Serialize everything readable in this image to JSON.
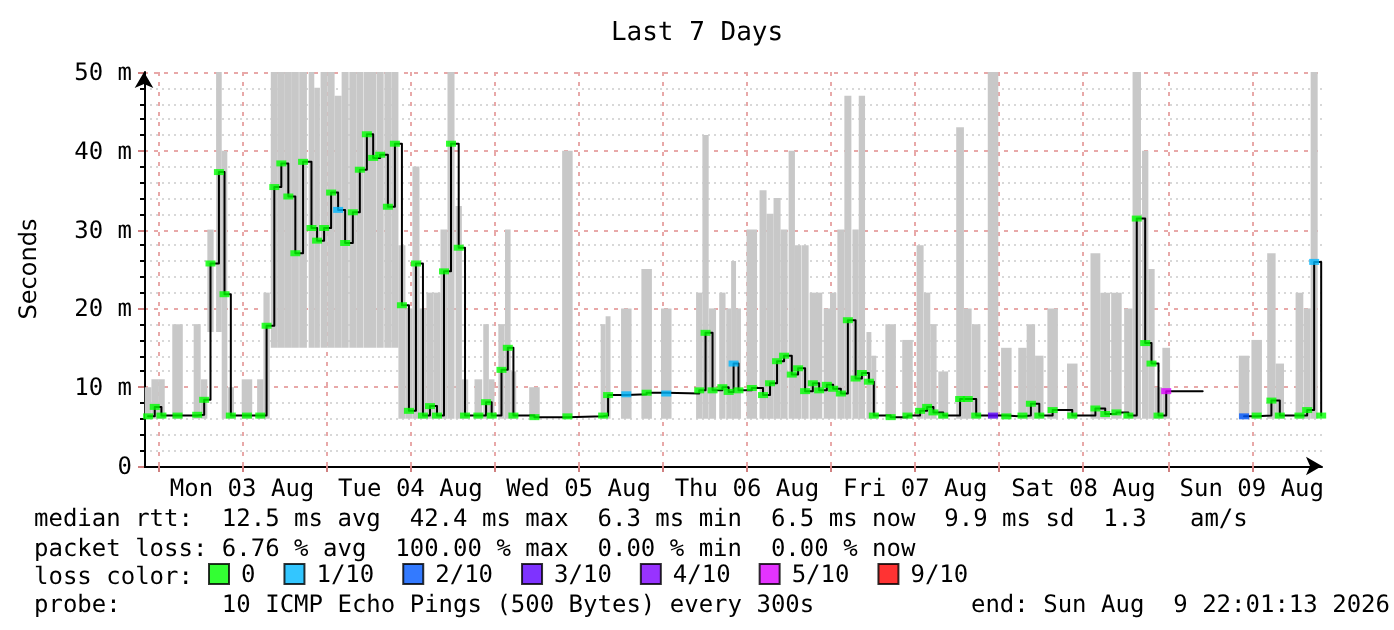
{
  "chart_data": {
    "type": "scatter",
    "title": "Last 7 Days",
    "ylabel": "Seconds",
    "legend_title": "loss color:",
    "legend": "bottom",
    "grid": true,
    "marker": "square",
    "xlim": [
      "2026-08-02T22:01",
      "2026-08-09T22:01"
    ],
    "xticks": [
      {
        "value": "2026-08-03T00:00",
        "label": null
      },
      {
        "value": "2026-08-03T12:00",
        "label": "Mon 03 Aug"
      },
      {
        "value": "2026-08-04T00:00",
        "label": null
      },
      {
        "value": "2026-08-04T12:00",
        "label": "Tue 04 Aug"
      },
      {
        "value": "2026-08-05T00:00",
        "label": null
      },
      {
        "value": "2026-08-05T12:00",
        "label": "Wed 05 Aug"
      },
      {
        "value": "2026-08-06T00:00",
        "label": null
      },
      {
        "value": "2026-08-06T12:00",
        "label": "Thu 06 Aug"
      },
      {
        "value": "2026-08-07T00:00",
        "label": null
      },
      {
        "value": "2026-08-07T12:00",
        "label": "Fri 07 Aug"
      },
      {
        "value": "2026-08-08T00:00",
        "label": null
      },
      {
        "value": "2026-08-08T12:00",
        "label": "Sat 08 Aug"
      },
      {
        "value": "2026-08-09T00:00",
        "label": null
      },
      {
        "value": "2026-08-09T12:00",
        "label": "Sun 09 Aug"
      }
    ],
    "ylim": [
      0,
      50
    ],
    "yticks": [
      {
        "value": 0,
        "label": "0"
      },
      {
        "value": 10,
        "label": "10 m"
      },
      {
        "value": 20,
        "label": "20 m"
      },
      {
        "value": 30,
        "label": "30 m"
      },
      {
        "value": 40,
        "label": "40 m"
      },
      {
        "value": 50,
        "label": "50 m"
      }
    ],
    "annotations": [
      "median rtt:  12.5 ms avg  42.4 ms max  6.3 ms min  6.5 ms now  9.9 ms sd  1.3   am/s",
      "packet loss: 6.76 % avg  100.00 % max  0.00 % min  0.00 % now",
      "probe:       10 ICMP Echo Pings (500 Bytes) every 300s",
      "end: Sun Aug  9 22:01:13 2026"
    ],
    "series": [
      {
        "type": "step",
        "color": "#000000",
        "marker": "none",
        "line_style": "solid",
        "x": [
          "2026-08-02T22:36",
          "2026-08-02T23:33",
          "2026-08-03T00:30",
          "2026-08-03T02:48",
          "2026-08-03T05:36",
          "2026-08-03T06:36",
          "2026-08-03T07:30",
          "2026-08-03T08:42",
          "2026-08-03T09:30",
          "2026-08-03T10:24",
          "2026-08-03T12:42",
          "2026-08-03T14:36",
          "2026-08-03T15:30",
          "2026-08-03T16:36",
          "2026-08-03T17:36",
          "2026-08-03T18:36",
          "2026-08-03T19:36",
          "2026-08-03T20:42",
          "2026-08-03T21:54",
          "2026-08-03T22:42",
          "2026-08-03T23:42",
          "2026-08-04T00:42",
          "2026-08-04T01:42",
          "2026-08-04T02:42",
          "2026-08-04T03:48",
          "2026-08-04T04:48",
          "2026-08-04T05:48",
          "2026-08-04T06:42",
          "2026-08-04T07:42",
          "2026-08-04T08:48",
          "2026-08-04T09:48",
          "2026-08-04T10:48",
          "2026-08-04T11:48",
          "2026-08-04T12:48",
          "2026-08-04T13:48",
          "2026-08-04T14:48",
          "2026-08-04T15:48",
          "2026-08-04T16:48",
          "2026-08-04T17:48",
          "2026-08-04T18:54",
          "2026-08-04T19:48",
          "2026-08-04T21:42",
          "2026-08-04T22:48",
          "2026-08-04T23:36",
          "2026-08-05T01:00",
          "2026-08-05T01:54",
          "2026-08-05T02:42",
          "2026-08-05T05:42",
          "2026-08-05T10:24",
          "2026-08-05T15:30",
          "2026-08-05T16:12",
          "2026-08-05T18:48",
          "2026-08-05T21:42",
          "2026-08-06T00:30",
          "2026-08-06T05:12",
          "2026-08-06T06:06",
          "2026-08-06T07:06",
          "2026-08-06T08:30",
          "2026-08-06T09:24",
          "2026-08-06T10:06",
          "2026-08-06T10:48",
          "2026-08-06T12:42",
          "2026-08-06T14:18",
          "2026-08-06T15:18",
          "2026-08-06T16:18",
          "2026-08-06T17:18",
          "2026-08-06T18:24",
          "2026-08-06T19:18",
          "2026-08-06T20:18",
          "2026-08-06T21:24",
          "2026-08-06T22:18",
          "2026-08-06T23:24",
          "2026-08-07T00:18",
          "2026-08-07T01:24",
          "2026-08-07T02:24",
          "2026-08-07T03:30",
          "2026-08-07T04:24",
          "2026-08-07T05:24",
          "2026-08-07T06:06",
          "2026-08-07T08:30",
          "2026-08-07T10:54",
          "2026-08-07T12:42",
          "2026-08-07T13:42",
          "2026-08-07T14:36",
          "2026-08-07T16:00",
          "2026-08-07T18:24",
          "2026-08-07T19:30",
          "2026-08-07T20:42",
          "2026-08-07T23:06",
          "2026-08-08T01:00",
          "2026-08-08T03:18",
          "2026-08-08T04:30",
          "2026-08-08T05:42",
          "2026-08-08T07:36",
          "2026-08-08T10:24",
          "2026-08-08T13:42",
          "2026-08-08T15:06",
          "2026-08-08T16:42",
          "2026-08-08T18:24",
          "2026-08-08T19:36",
          "2026-08-08T20:48",
          "2026-08-08T21:42",
          "2026-08-08T22:42",
          "2026-08-08T23:48",
          "2026-08-09T05:00",
          "2026-08-09T10:54",
          "2026-08-09T12:42",
          "2026-08-09T14:48",
          "2026-08-09T16:00",
          "2026-08-09T18:48",
          "2026-08-09T19:54",
          "2026-08-09T20:54",
          "2026-08-09T21:54"
        ],
        "values": [
          6.3,
          7.5,
          6.4,
          6.4,
          6.5,
          8.4,
          25.7,
          37.3,
          21.8,
          6.4,
          6.4,
          6.4,
          17.8,
          35.4,
          38.4,
          34.2,
          27,
          38.6,
          30.2,
          28.6,
          30.2,
          34.7,
          32.5,
          28.3,
          32.2,
          37.6,
          42.1,
          39.1,
          39.5,
          32.9,
          40.9,
          20.4,
          7,
          25.7,
          6.4,
          7.6,
          6.4,
          24.7,
          40.9,
          27.7,
          6.4,
          6.4,
          8.1,
          6.4,
          12.2,
          15,
          6.4,
          6.2,
          6.3,
          6.4,
          9,
          9.1,
          9.3,
          9.2,
          9.6,
          16.9,
          9.6,
          10,
          9.4,
          13,
          9.6,
          9.9,
          9,
          10.5,
          13.3,
          14,
          11.6,
          12.4,
          9.5,
          10.5,
          9.6,
          10.3,
          9.8,
          9.2,
          18.5,
          11.1,
          11.8,
          10.7,
          6.4,
          6.2,
          6.4,
          7,
          7.5,
          6.8,
          6.4,
          8.5,
          8.5,
          6.4,
          6.4,
          6.3,
          6.4,
          7.9,
          6.4,
          7.1,
          6.4,
          7.3,
          6.6,
          6.8,
          6.4,
          31.4,
          15.6,
          13,
          6.4,
          9.5,
          null,
          6.3,
          6.4,
          8.3,
          6.4,
          6.4,
          7.1,
          25.9,
          6.4
        ],
        "lower": [
          6,
          6,
          6,
          6,
          6,
          6,
          17,
          17,
          6,
          6,
          6,
          6,
          6,
          15,
          15,
          15,
          15,
          15,
          15,
          15,
          15,
          15,
          15,
          15,
          15,
          15,
          15,
          15,
          15,
          15,
          15,
          6,
          6,
          6,
          6,
          6,
          6,
          6,
          6,
          6,
          6,
          6,
          6,
          6,
          6,
          6,
          6,
          6,
          6,
          6,
          6,
          6,
          6,
          6,
          6,
          6,
          6,
          6,
          6,
          6,
          6,
          6,
          6,
          6,
          6,
          6,
          6,
          6,
          6,
          6,
          6,
          6,
          6,
          6,
          6,
          6,
          6,
          6,
          6,
          6,
          6,
          6,
          6,
          6,
          6,
          6,
          6,
          6,
          6,
          6,
          6,
          6,
          6,
          6,
          6,
          6,
          6,
          6,
          6,
          6,
          6,
          6,
          6,
          6,
          null,
          6,
          6,
          6,
          6,
          6,
          6,
          6,
          null
        ],
        "upper": [
          10,
          11,
          11,
          18,
          18,
          11,
          30,
          50,
          40,
          10,
          11,
          11,
          22,
          50,
          50,
          50,
          50,
          50,
          50,
          48,
          50,
          50,
          47,
          50,
          50,
          50,
          50,
          50,
          50,
          50,
          50,
          28,
          20,
          38,
          20,
          22,
          22,
          30,
          50,
          33,
          11,
          11,
          18,
          11,
          18,
          30,
          12,
          10,
          40,
          18,
          19,
          20,
          25,
          20,
          22,
          42,
          20,
          22,
          20,
          26,
          20,
          30,
          35,
          32,
          34,
          30,
          40,
          28,
          28,
          22,
          22,
          20,
          22,
          30,
          47,
          30,
          47,
          17,
          14,
          18,
          16,
          28,
          22,
          18,
          12,
          43,
          20,
          18,
          50,
          15,
          15,
          18,
          14,
          20,
          13,
          27,
          22,
          22,
          20,
          50,
          40,
          25,
          10,
          15,
          null,
          14,
          16,
          27,
          13,
          22,
          20,
          50,
          null
        ]
      },
      {
        "name": "0",
        "color": "#00ff00",
        "x": [
          "2026-08-02T22:36",
          "2026-08-02T23:33",
          "2026-08-03T00:30",
          "2026-08-03T02:48",
          "2026-08-03T05:36",
          "2026-08-03T06:36",
          "2026-08-03T07:30",
          "2026-08-03T08:42",
          "2026-08-03T09:30",
          "2026-08-03T10:24",
          "2026-08-03T12:42",
          "2026-08-03T14:36",
          "2026-08-03T15:30",
          "2026-08-03T16:36",
          "2026-08-03T17:36",
          "2026-08-03T18:36",
          "2026-08-03T19:36",
          "2026-08-03T20:42",
          "2026-08-03T21:54",
          "2026-08-03T22:42",
          "2026-08-03T23:42",
          "2026-08-04T00:42",
          "2026-08-04T02:42",
          "2026-08-04T03:48",
          "2026-08-04T04:48",
          "2026-08-04T05:48",
          "2026-08-04T06:42",
          "2026-08-04T07:42",
          "2026-08-04T08:48",
          "2026-08-04T09:48",
          "2026-08-04T10:48",
          "2026-08-04T11:48",
          "2026-08-04T12:48",
          "2026-08-04T13:48",
          "2026-08-04T14:48",
          "2026-08-04T15:48",
          "2026-08-04T16:48",
          "2026-08-04T17:48",
          "2026-08-04T18:54",
          "2026-08-04T19:48",
          "2026-08-04T21:42",
          "2026-08-04T22:48",
          "2026-08-04T23:36",
          "2026-08-05T01:00",
          "2026-08-05T01:54",
          "2026-08-05T02:42",
          "2026-08-05T05:42",
          "2026-08-05T10:24",
          "2026-08-05T15:30",
          "2026-08-05T16:12",
          "2026-08-05T21:42",
          "2026-08-06T05:12",
          "2026-08-06T06:06",
          "2026-08-06T07:06",
          "2026-08-06T08:30",
          "2026-08-06T09:24",
          "2026-08-06T10:48",
          "2026-08-06T12:42",
          "2026-08-06T14:18",
          "2026-08-06T15:18",
          "2026-08-06T16:18",
          "2026-08-06T17:18",
          "2026-08-06T18:24",
          "2026-08-06T19:18",
          "2026-08-06T20:18",
          "2026-08-06T21:24",
          "2026-08-06T22:18",
          "2026-08-06T23:24",
          "2026-08-07T00:18",
          "2026-08-07T01:24",
          "2026-08-07T02:24",
          "2026-08-07T03:30",
          "2026-08-07T04:24",
          "2026-08-07T05:24",
          "2026-08-07T06:06",
          "2026-08-07T08:30",
          "2026-08-07T10:54",
          "2026-08-07T12:42",
          "2026-08-07T13:42",
          "2026-08-07T14:36",
          "2026-08-07T16:00",
          "2026-08-07T18:24",
          "2026-08-07T19:30",
          "2026-08-07T20:42",
          "2026-08-08T01:00",
          "2026-08-08T03:18",
          "2026-08-08T04:30",
          "2026-08-08T05:42",
          "2026-08-08T07:36",
          "2026-08-08T10:24",
          "2026-08-08T13:42",
          "2026-08-08T15:06",
          "2026-08-08T16:42",
          "2026-08-08T18:24",
          "2026-08-08T19:36",
          "2026-08-08T20:48",
          "2026-08-08T21:42",
          "2026-08-08T22:42",
          "2026-08-09T12:42",
          "2026-08-09T14:48",
          "2026-08-09T16:00",
          "2026-08-09T18:48",
          "2026-08-09T19:54",
          "2026-08-09T21:54"
        ],
        "values": [
          6.3,
          7.5,
          6.4,
          6.4,
          6.5,
          8.4,
          25.7,
          37.3,
          21.8,
          6.4,
          6.4,
          6.4,
          17.8,
          35.4,
          38.4,
          34.2,
          27,
          38.6,
          30.2,
          28.6,
          30.2,
          34.7,
          28.3,
          32.2,
          37.6,
          42.1,
          39.1,
          39.5,
          32.9,
          40.9,
          20.4,
          7,
          25.7,
          6.4,
          7.6,
          6.4,
          24.7,
          40.9,
          27.7,
          6.4,
          6.4,
          8.1,
          6.4,
          12.2,
          15,
          6.4,
          6.2,
          6.3,
          6.4,
          9,
          9.3,
          9.6,
          16.9,
          9.6,
          10,
          9.4,
          9.6,
          9.9,
          9,
          10.5,
          13.3,
          14,
          11.6,
          12.4,
          9.5,
          10.5,
          9.6,
          10.3,
          9.8,
          9.2,
          18.5,
          11.1,
          11.8,
          10.7,
          6.4,
          6.2,
          6.4,
          7,
          7.5,
          6.8,
          6.4,
          8.5,
          8.5,
          6.4,
          6.3,
          6.4,
          7.9,
          6.4,
          7.1,
          6.4,
          7.3,
          6.6,
          6.8,
          6.4,
          31.4,
          15.6,
          13,
          6.4,
          6.4,
          8.3,
          6.4,
          6.4,
          7.1,
          6.4
        ]
      },
      {
        "name": "1/10",
        "color": "#00b8ff",
        "x": [
          "2026-08-04T01:42",
          "2026-08-05T18:48",
          "2026-08-06T00:30",
          "2026-08-06T10:06",
          "2026-08-09T20:54"
        ],
        "values": [
          32.5,
          9.1,
          9.2,
          13,
          25.9
        ]
      },
      {
        "name": "2/10",
        "color": "#0059ff",
        "x": [
          "2026-08-09T10:54"
        ],
        "values": [
          6.3
        ]
      },
      {
        "name": "3/10",
        "color": "#5e00ff",
        "x": [
          "2026-08-07T23:06"
        ],
        "values": [
          6.4
        ]
      },
      {
        "name": "4/10",
        "color": "#7e00ff"
      },
      {
        "name": "5/10",
        "color": "#dd00ff",
        "x": [
          "2026-08-08T23:48"
        ],
        "values": [
          9.5
        ]
      },
      {
        "name": "9/10",
        "color": "#ff0000"
      }
    ]
  }
}
